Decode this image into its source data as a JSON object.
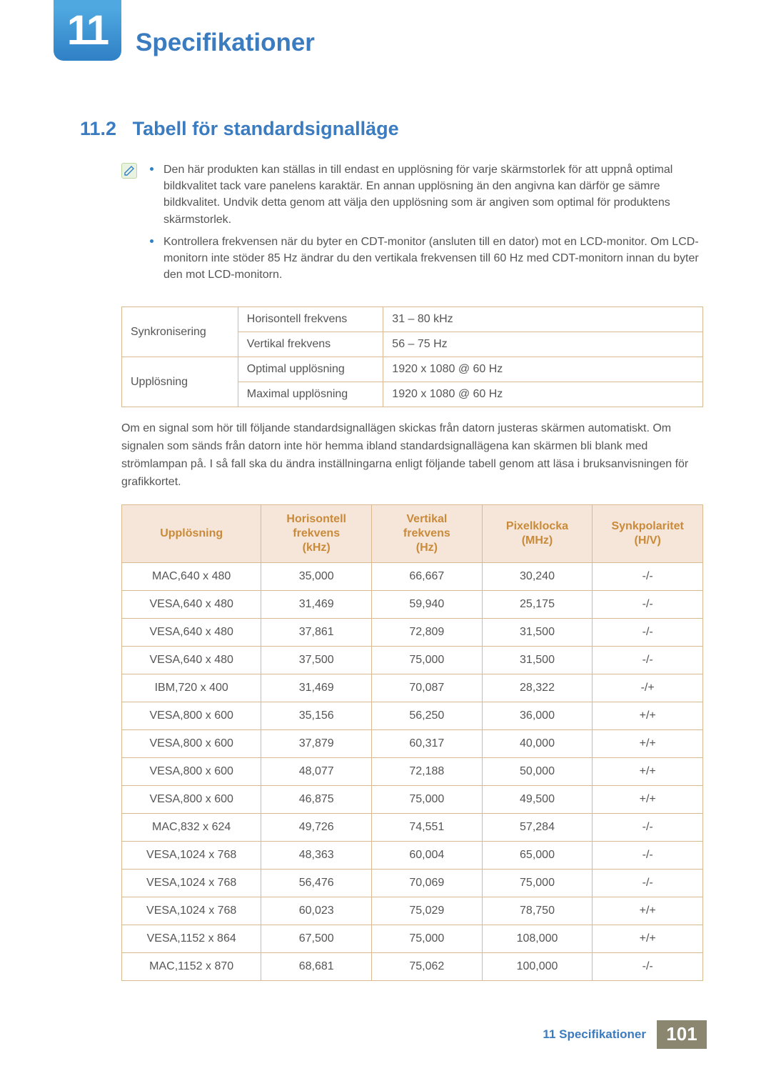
{
  "chapter": {
    "number": "11",
    "title": "Specifikationer"
  },
  "section": {
    "number": "11.2",
    "title": "Tabell för standardsignalläge"
  },
  "notes": [
    "Den här produkten kan ställas in till endast en upplösning för varje skärmstorlek för att uppnå optimal bildkvalitet tack vare panelens karaktär. En annan upplösning än den angivna kan därför ge sämre bildkvalitet. Undvik detta genom att välja den upplösning som är angiven som optimal för produktens skärmstorlek.",
    "Kontrollera frekvensen när du byter en CDT-monitor (ansluten till en dator) mot en LCD-monitor. Om LCD-monitorn inte stöder 85 Hz ändrar du den vertikala frekvensen till 60 Hz med CDT-monitorn innan du byter den mot LCD-monitorn."
  ],
  "sync_table": {
    "rows": [
      {
        "group": "Synkronisering",
        "label": "Horisontell frekvens",
        "value": "31 – 80 kHz"
      },
      {
        "group": "Synkronisering",
        "label": "Vertikal frekvens",
        "value": "56 – 75 Hz"
      },
      {
        "group": "Upplösning",
        "label": "Optimal upplösning",
        "value": "1920 x 1080 @ 60 Hz"
      },
      {
        "group": "Upplösning",
        "label": "Maximal upplösning",
        "value": "1920 x 1080 @ 60 Hz"
      }
    ],
    "col_widths": [
      "20%",
      "25%",
      "55%"
    ]
  },
  "middle_paragraph": "Om en signal som hör till följande standardsignallägen skickas från datorn justeras skärmen automatiskt. Om signalen som sänds från datorn inte hör hemma ibland standardsignallägena kan skärmen bli blank med strömlampan på. I så fall ska du ändra inställningarna enligt följande tabell genom att läsa i bruksanvisningen för grafikkortet.",
  "signal_table": {
    "columns": [
      "Upplösning",
      "Horisontell\nfrekvens\n(kHz)",
      "Vertikal\nfrekvens\n(Hz)",
      "Pixelklocka\n(MHz)",
      "Synkpolaritet\n(H/V)"
    ],
    "col_widths": [
      "24%",
      "19%",
      "19%",
      "19%",
      "19%"
    ],
    "rows": [
      [
        "MAC,640 x 480",
        "35,000",
        "66,667",
        "30,240",
        "-/-"
      ],
      [
        "VESA,640 x 480",
        "31,469",
        "59,940",
        "25,175",
        "-/-"
      ],
      [
        "VESA,640 x 480",
        "37,861",
        "72,809",
        "31,500",
        "-/-"
      ],
      [
        "VESA,640 x 480",
        "37,500",
        "75,000",
        "31,500",
        "-/-"
      ],
      [
        "IBM,720 x 400",
        "31,469",
        "70,087",
        "28,322",
        "-/+"
      ],
      [
        "VESA,800 x 600",
        "35,156",
        "56,250",
        "36,000",
        "+/+"
      ],
      [
        "VESA,800 x 600",
        "37,879",
        "60,317",
        "40,000",
        "+/+"
      ],
      [
        "VESA,800 x 600",
        "48,077",
        "72,188",
        "50,000",
        "+/+"
      ],
      [
        "VESA,800 x 600",
        "46,875",
        "75,000",
        "49,500",
        "+/+"
      ],
      [
        "MAC,832 x 624",
        "49,726",
        "74,551",
        "57,284",
        "-/-"
      ],
      [
        "VESA,1024 x 768",
        "48,363",
        "60,004",
        "65,000",
        "-/-"
      ],
      [
        "VESA,1024 x 768",
        "56,476",
        "70,069",
        "75,000",
        "-/-"
      ],
      [
        "VESA,1024 x 768",
        "60,023",
        "75,029",
        "78,750",
        "+/+"
      ],
      [
        "VESA,1152 x 864",
        "67,500",
        "75,000",
        "108,000",
        "+/+"
      ],
      [
        "MAC,1152 x 870",
        "68,681",
        "75,062",
        "100,000",
        "-/-"
      ]
    ]
  },
  "footer": {
    "label": "11 Specifikationer",
    "page": "101"
  },
  "colors": {
    "heading": "#3b7bbf",
    "table_border": "#d9b98f",
    "table_header_bg": "#f6e6d9",
    "table_header_text": "#c98a3a",
    "footer_badge_bg": "#8b8670"
  }
}
